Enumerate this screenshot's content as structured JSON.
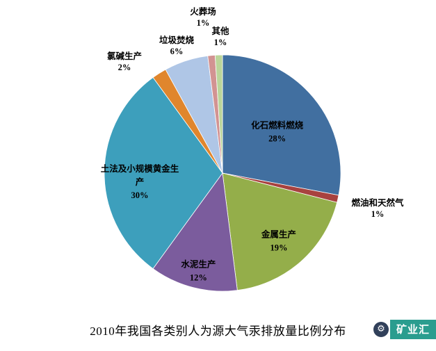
{
  "chart_data": {
    "type": "pie",
    "title": "2010年我国各类别人为源大气汞排放量比例分布",
    "unit": "%",
    "legend": "none",
    "direction": "clockwise",
    "start_angle_deg": 0,
    "slices": [
      {
        "label": "化石燃料燃烧",
        "value": 28,
        "pct": "28%",
        "color": "#416FA0"
      },
      {
        "label": "燃油和天然气",
        "value": 1,
        "pct": "1%",
        "color": "#A8423F"
      },
      {
        "label": "金属生产",
        "value": 19,
        "pct": "19%",
        "color": "#94AE4A"
      },
      {
        "label": "水泥生产",
        "value": 12,
        "pct": "12%",
        "color": "#7B5C9D"
      },
      {
        "label": "土法及小规模黄金生产",
        "lines": [
          "土法及小规模黄金生",
          "产"
        ],
        "value": 30,
        "pct": "30%",
        "color": "#3D9FBC"
      },
      {
        "label": "氯碱生产",
        "value": 2,
        "pct": "2%",
        "color": "#E0862D"
      },
      {
        "label": "垃圾焚烧",
        "value": 6,
        "pct": "6%",
        "color": "#AFC6E6"
      },
      {
        "label": "火葬场",
        "value": 1,
        "pct": "1%",
        "color": "#D29392"
      },
      {
        "label": "其他",
        "value": 1,
        "pct": "1%",
        "color": "#BBD59A"
      }
    ]
  },
  "watermark": {
    "label": "矿业汇",
    "icon": "gear-icon",
    "color": "#2A9D8F"
  }
}
